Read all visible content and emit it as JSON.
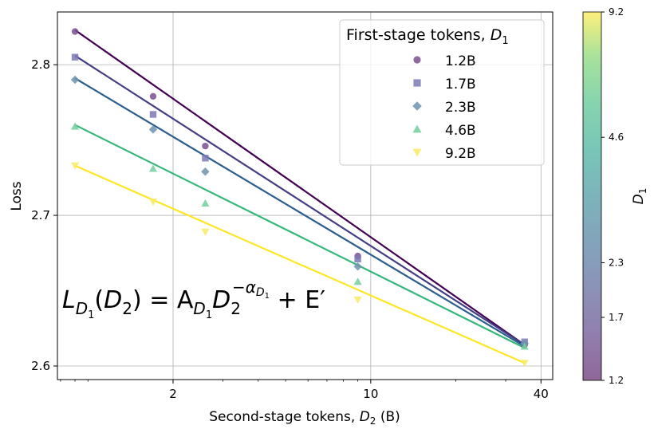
{
  "chart_data": {
    "type": "line",
    "xlabel": "Second-stage tokens, ",
    "xlabel_var": "D",
    "xlabel_sub": "2",
    "xlabel_unit": " (B)",
    "ylabel": "Loss",
    "xscale": "log",
    "xlim": [
      0.78,
      44
    ],
    "ylim": [
      2.591,
      2.835
    ],
    "x_ticks": [
      2,
      10,
      40
    ],
    "x_tick_labels": [
      "2",
      "10",
      "40"
    ],
    "y_ticks": [
      2.6,
      2.7,
      2.8
    ],
    "y_tick_labels": [
      "2.6",
      "2.7",
      "2.8"
    ],
    "grid": true,
    "legend": {
      "title": "First-stage tokens, ",
      "title_var": "D",
      "title_sub": "1",
      "placement": "top-right",
      "entries": [
        "1.2B",
        "1.7B",
        "2.3B",
        "4.6B",
        "9.2B"
      ]
    },
    "colorbar": {
      "label": "D",
      "label_sub": "1",
      "ticks": [
        1.2,
        1.7,
        2.3,
        4.6,
        9.2
      ],
      "tick_labels": [
        "1.2",
        "1.7",
        "2.3",
        "4.6",
        "9.2"
      ],
      "range": [
        1.2,
        9.2
      ],
      "scale": "log"
    },
    "x": [
      0.9,
      1.7,
      2.6,
      9.0,
      35.0
    ],
    "series": [
      {
        "name": "1.2B",
        "marker": "circle",
        "line_color": "#440154",
        "marker_color": "#7b4f93",
        "values": [
          2.822,
          2.779,
          2.746,
          2.673,
          2.614
        ],
        "fit": [
          2.823,
          2.614
        ]
      },
      {
        "name": "1.7B",
        "marker": "square",
        "line_color": "#433e85",
        "marker_color": "#7b78b4",
        "values": [
          2.805,
          2.767,
          2.738,
          2.671,
          2.616
        ],
        "fit": [
          2.806,
          2.614
        ]
      },
      {
        "name": "2.3B",
        "marker": "diamond",
        "line_color": "#2c5f8e",
        "marker_color": "#6e93ae",
        "values": [
          2.79,
          2.757,
          2.729,
          2.666,
          2.615
        ],
        "fit": [
          2.791,
          2.613
        ]
      },
      {
        "name": "4.6B",
        "marker": "triangle-up",
        "line_color": "#35b779",
        "marker_color": "#71cf9e",
        "values": [
          2.759,
          2.731,
          2.708,
          2.656,
          2.613
        ],
        "fit": [
          2.76,
          2.612
        ]
      },
      {
        "name": "9.2B",
        "marker": "triangle-down",
        "line_color": "#fde725",
        "marker_color": "#f9ea63",
        "values": [
          2.733,
          2.709,
          2.689,
          2.644,
          2.602
        ],
        "fit": [
          2.733,
          2.602
        ]
      }
    ],
    "annotation": {
      "base": "L",
      "base_sub_var": "D",
      "base_sub_sub": "1",
      "arg": "(D",
      "arg_sub": "2",
      "rhs_mid": ") = A",
      "rhs_a_sub_var": "D",
      "rhs_a_sub_sub": "1",
      "rhs_d": "D",
      "rhs_d_sub": "2",
      "exp_prefix": "−α",
      "exp_sub_var": "D",
      "exp_sub_sub": "1",
      "tail": " + E′"
    }
  }
}
